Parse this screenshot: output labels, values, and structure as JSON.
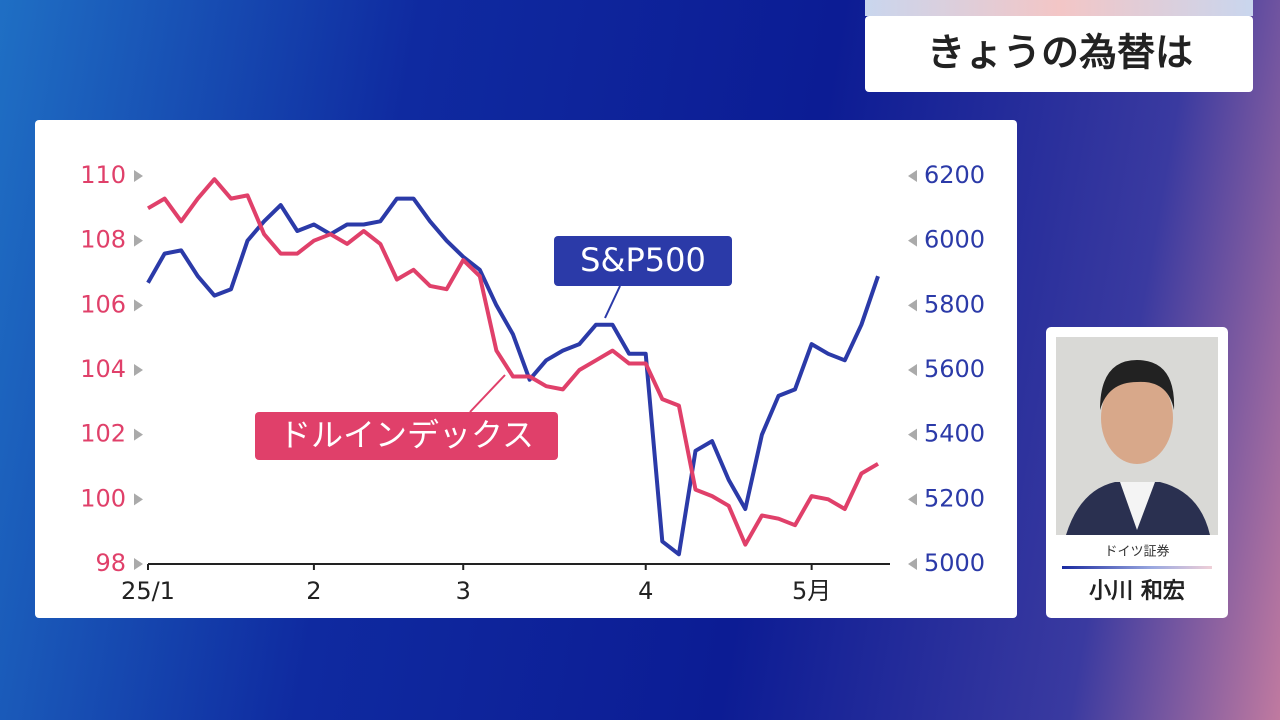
{
  "header": {
    "title": "きょうの為替は"
  },
  "chart_data": {
    "type": "line",
    "categories": [
      "25/1",
      null,
      null,
      null,
      null,
      null,
      null,
      null,
      null,
      null,
      "2",
      null,
      null,
      null,
      null,
      null,
      null,
      null,
      null,
      "3",
      null,
      null,
      null,
      null,
      null,
      null,
      null,
      null,
      null,
      null,
      "4",
      null,
      null,
      null,
      null,
      null,
      null,
      null,
      null,
      null,
      "5月",
      null,
      null,
      null,
      null
    ],
    "series": [
      {
        "name": "S&P500",
        "color": "#2b3aa8",
        "axis": "y2",
        "values": [
          5870,
          5960,
          5970,
          5890,
          5830,
          5850,
          6000,
          6060,
          6110,
          6030,
          6050,
          6020,
          6050,
          6050,
          6060,
          6130,
          6130,
          6060,
          6000,
          5950,
          5910,
          5800,
          5710,
          5570,
          5630,
          5660,
          5680,
          5740,
          5740,
          5650,
          5650,
          5070,
          5030,
          5350,
          5380,
          5260,
          5170,
          5400,
          5520,
          5540,
          5680,
          5650,
          5630,
          5740,
          5890
        ]
      },
      {
        "name": "ドルインデックス",
        "color": "#e0406a",
        "values": [
          109.0,
          109.3,
          108.6,
          109.3,
          109.9,
          109.3,
          109.4,
          108.2,
          107.6,
          107.6,
          108.0,
          108.2,
          107.9,
          108.3,
          107.9,
          106.8,
          107.1,
          106.6,
          106.5,
          107.4,
          106.9,
          104.6,
          103.8,
          103.8,
          103.5,
          103.4,
          104.0,
          104.3,
          104.6,
          104.2,
          104.2,
          103.1,
          102.9,
          100.3,
          100.1,
          99.8,
          98.6,
          99.5,
          99.4,
          99.2,
          100.1,
          100.0,
          99.7,
          100.8,
          101.1
        ]
      }
    ],
    "ylim": [
      98,
      110
    ],
    "yticks": [
      98,
      100,
      102,
      104,
      106,
      108,
      110
    ],
    "y2lim": [
      5000,
      6200
    ],
    "y2ticks": [
      5000,
      5200,
      5400,
      5600,
      5800,
      6000,
      6200
    ]
  },
  "guest": {
    "affiliation": "ドイツ証券",
    "name": "小川 和宏"
  }
}
